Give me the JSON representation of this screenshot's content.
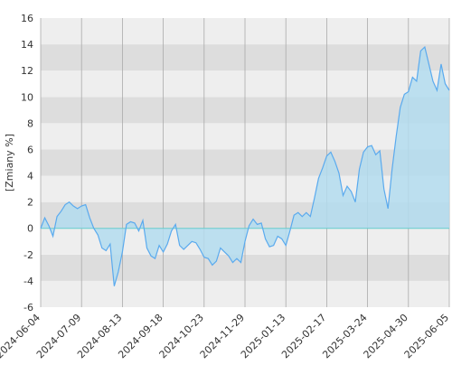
{
  "chart_data": {
    "type": "area",
    "y_label": "[Zmiany %]",
    "categories": [
      "2024-06-04",
      null,
      null,
      null,
      null,
      null,
      null,
      null,
      null,
      null,
      "2024-07-09",
      null,
      null,
      null,
      null,
      null,
      null,
      null,
      null,
      null,
      "2024-08-13",
      null,
      null,
      null,
      null,
      null,
      null,
      null,
      null,
      null,
      "2024-09-18",
      null,
      null,
      null,
      null,
      null,
      null,
      null,
      null,
      null,
      "2024-10-23",
      null,
      null,
      null,
      null,
      null,
      null,
      null,
      null,
      null,
      "2024-11-29",
      null,
      null,
      null,
      null,
      null,
      null,
      null,
      null,
      null,
      "2025-01-13",
      null,
      null,
      null,
      null,
      null,
      null,
      null,
      null,
      null,
      "2025-02-17",
      null,
      null,
      null,
      null,
      null,
      null,
      null,
      null,
      null,
      "2025-03-24",
      null,
      null,
      null,
      null,
      null,
      null,
      null,
      null,
      null,
      "2025-04-30",
      null,
      null,
      null,
      null,
      null,
      null,
      null,
      null,
      null,
      "2025-06-05"
    ],
    "values": [
      0,
      0.8,
      0.2,
      -0.6,
      0.9,
      1.3,
      1.8,
      2.0,
      1.7,
      1.5,
      1.7,
      1.8,
      0.8,
      0,
      -0.5,
      -1.5,
      -1.7,
      -1.2,
      -4.4,
      -3.3,
      -1.8,
      0.3,
      0.5,
      0.4,
      -0.2,
      0.6,
      -1.5,
      -2.1,
      -2.3,
      -1.3,
      -1.8,
      -1.2,
      -0.2,
      0.3,
      -1.3,
      -1.6,
      -1.3,
      -1.0,
      -1.1,
      -1.6,
      -2.2,
      -2.3,
      -2.8,
      -2.5,
      -1.5,
      -1.8,
      -2.1,
      -2.6,
      -2.3,
      -2.6,
      -1.0,
      0.2,
      0.7,
      0.3,
      0.4,
      -0.8,
      -1.4,
      -1.3,
      -0.6,
      -0.8,
      -1.3,
      -0.2,
      1.0,
      1.2,
      0.9,
      1.2,
      0.9,
      2.3,
      3.8,
      4.6,
      5.5,
      5.8,
      5.1,
      4.2,
      2.5,
      3.2,
      2.8,
      2.0,
      4.5,
      5.8,
      6.2,
      6.3,
      5.6,
      5.9,
      3.0,
      1.5,
      4.5,
      7.0,
      9.2,
      10.2,
      10.4,
      11.5,
      11.2,
      13.5,
      13.8,
      12.5,
      11.2,
      10.5,
      12.5,
      11.0,
      10.5
    ],
    "color": "#5aaaee",
    "area_color": "#b3dcee",
    "ylim": [
      -6,
      16
    ],
    "yticks": [
      -6,
      -4,
      -2,
      0,
      2,
      4,
      6,
      8,
      10,
      12,
      14,
      16
    ],
    "band_colors": [
      "#eeeeee",
      "#dddddd"
    ],
    "zero_line_color": "#66cccc"
  }
}
